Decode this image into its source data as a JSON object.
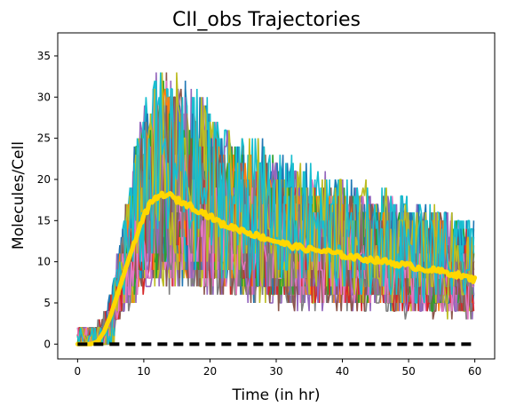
{
  "chart_data": {
    "type": "line",
    "title": "CII_obs Trajectories",
    "xlabel": "Time (in hr)",
    "ylabel": "Molecules/Cell",
    "xlim": [
      -3,
      63
    ],
    "ylim": [
      -1.8,
      37.8
    ],
    "xticks": [
      0,
      10,
      20,
      30,
      40,
      50,
      60
    ],
    "yticks": [
      0,
      5,
      10,
      15,
      20,
      25,
      30,
      35
    ],
    "grid": false,
    "legend": "none",
    "trajectory_colors": [
      "#1f77b4",
      "#ff7f0e",
      "#2ca02c",
      "#d62728",
      "#9467bd",
      "#8c564b",
      "#e377c2",
      "#7f7f7f",
      "#bcbd22",
      "#17becf"
    ],
    "mean_series": {
      "color": "#ffd700",
      "x": [
        0,
        2,
        3,
        4,
        5,
        6,
        7,
        8,
        9,
        10,
        11,
        12,
        13,
        14,
        15,
        17,
        20,
        22,
        25,
        27,
        30,
        32,
        35,
        38,
        40,
        42,
        45,
        48,
        50,
        52,
        55,
        57,
        60
      ],
      "y": [
        0,
        0,
        0.3,
        1.5,
        3.5,
        6,
        8.5,
        11,
        13.5,
        15.5,
        17,
        17.8,
        18.2,
        18,
        17.5,
        16.8,
        15.5,
        14.5,
        13.8,
        13.2,
        12.5,
        12,
        11.5,
        11.2,
        10.8,
        10.5,
        10.2,
        9.8,
        9.5,
        9.2,
        8.8,
        8.5,
        7.8
      ]
    },
    "zero_series": {
      "color": "#000000",
      "x": [
        0,
        60
      ],
      "y": [
        0,
        0
      ]
    }
  }
}
